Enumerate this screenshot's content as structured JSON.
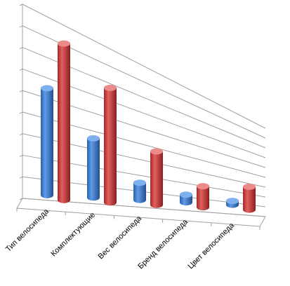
{
  "chart_data": {
    "type": "bar",
    "style": "3d-cylinder",
    "categories": [
      "Тип велосипеда",
      "Комплектующие",
      "Вес велосипеда",
      "Бренд велосипеда",
      "Цвет велосипеда"
    ],
    "series": [
      {
        "values": [
          56,
          31,
          9,
          4,
          2
        ],
        "color": "#3e78c8"
      },
      {
        "values": [
          82,
          60,
          28,
          11,
          12
        ],
        "color": "#c83a3a"
      }
    ],
    "ylim": [
      0,
      90
    ],
    "grid": true,
    "legend": "none",
    "title": "",
    "xlabel": "",
    "ylabel": ""
  }
}
